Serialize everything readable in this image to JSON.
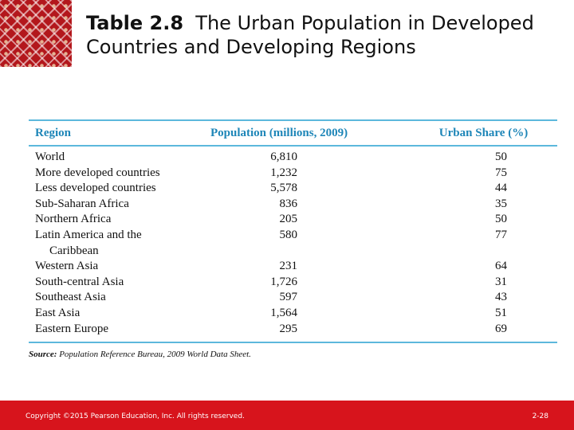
{
  "slide": {
    "title_bold": "Table 2.8",
    "title_rest": "The Urban Population in Developed Countries and Developing Regions"
  },
  "table": {
    "headers": [
      "Region",
      "Population (millions, 2009)",
      "Urban Share (%)"
    ],
    "rows": [
      {
        "region": "World",
        "population": "6,810",
        "urban": "50"
      },
      {
        "region": "More developed countries",
        "population": "1,232",
        "urban": "75"
      },
      {
        "region": "Less developed countries",
        "population": "5,578",
        "urban": "44"
      },
      {
        "region": "Sub-Saharan Africa",
        "population": "836",
        "urban": "35"
      },
      {
        "region": "Northern Africa",
        "population": "205",
        "urban": "50"
      },
      {
        "region": "Latin America and the",
        "region_cont": "Caribbean",
        "population": "580",
        "urban": "77"
      },
      {
        "region": "Western Asia",
        "population": "231",
        "urban": "64"
      },
      {
        "region": "South-central Asia",
        "population": "1,726",
        "urban": "31"
      },
      {
        "region": "Southeast Asia",
        "population": "597",
        "urban": "43"
      },
      {
        "region": "East Asia",
        "population": "1,564",
        "urban": "51"
      },
      {
        "region": "Eastern Europe",
        "population": "295",
        "urban": "69"
      }
    ],
    "source_label": "Source:",
    "source_text": "Population Reference Bureau, 2009 World Data Sheet."
  },
  "footer": {
    "copyright": "Copyright ©2015 Pearson Education, Inc. All rights reserved.",
    "page": "2-28"
  },
  "colors": {
    "accent": "#d7141c",
    "table_rule": "#5cb8dc",
    "header_text": "#1e86b8"
  }
}
